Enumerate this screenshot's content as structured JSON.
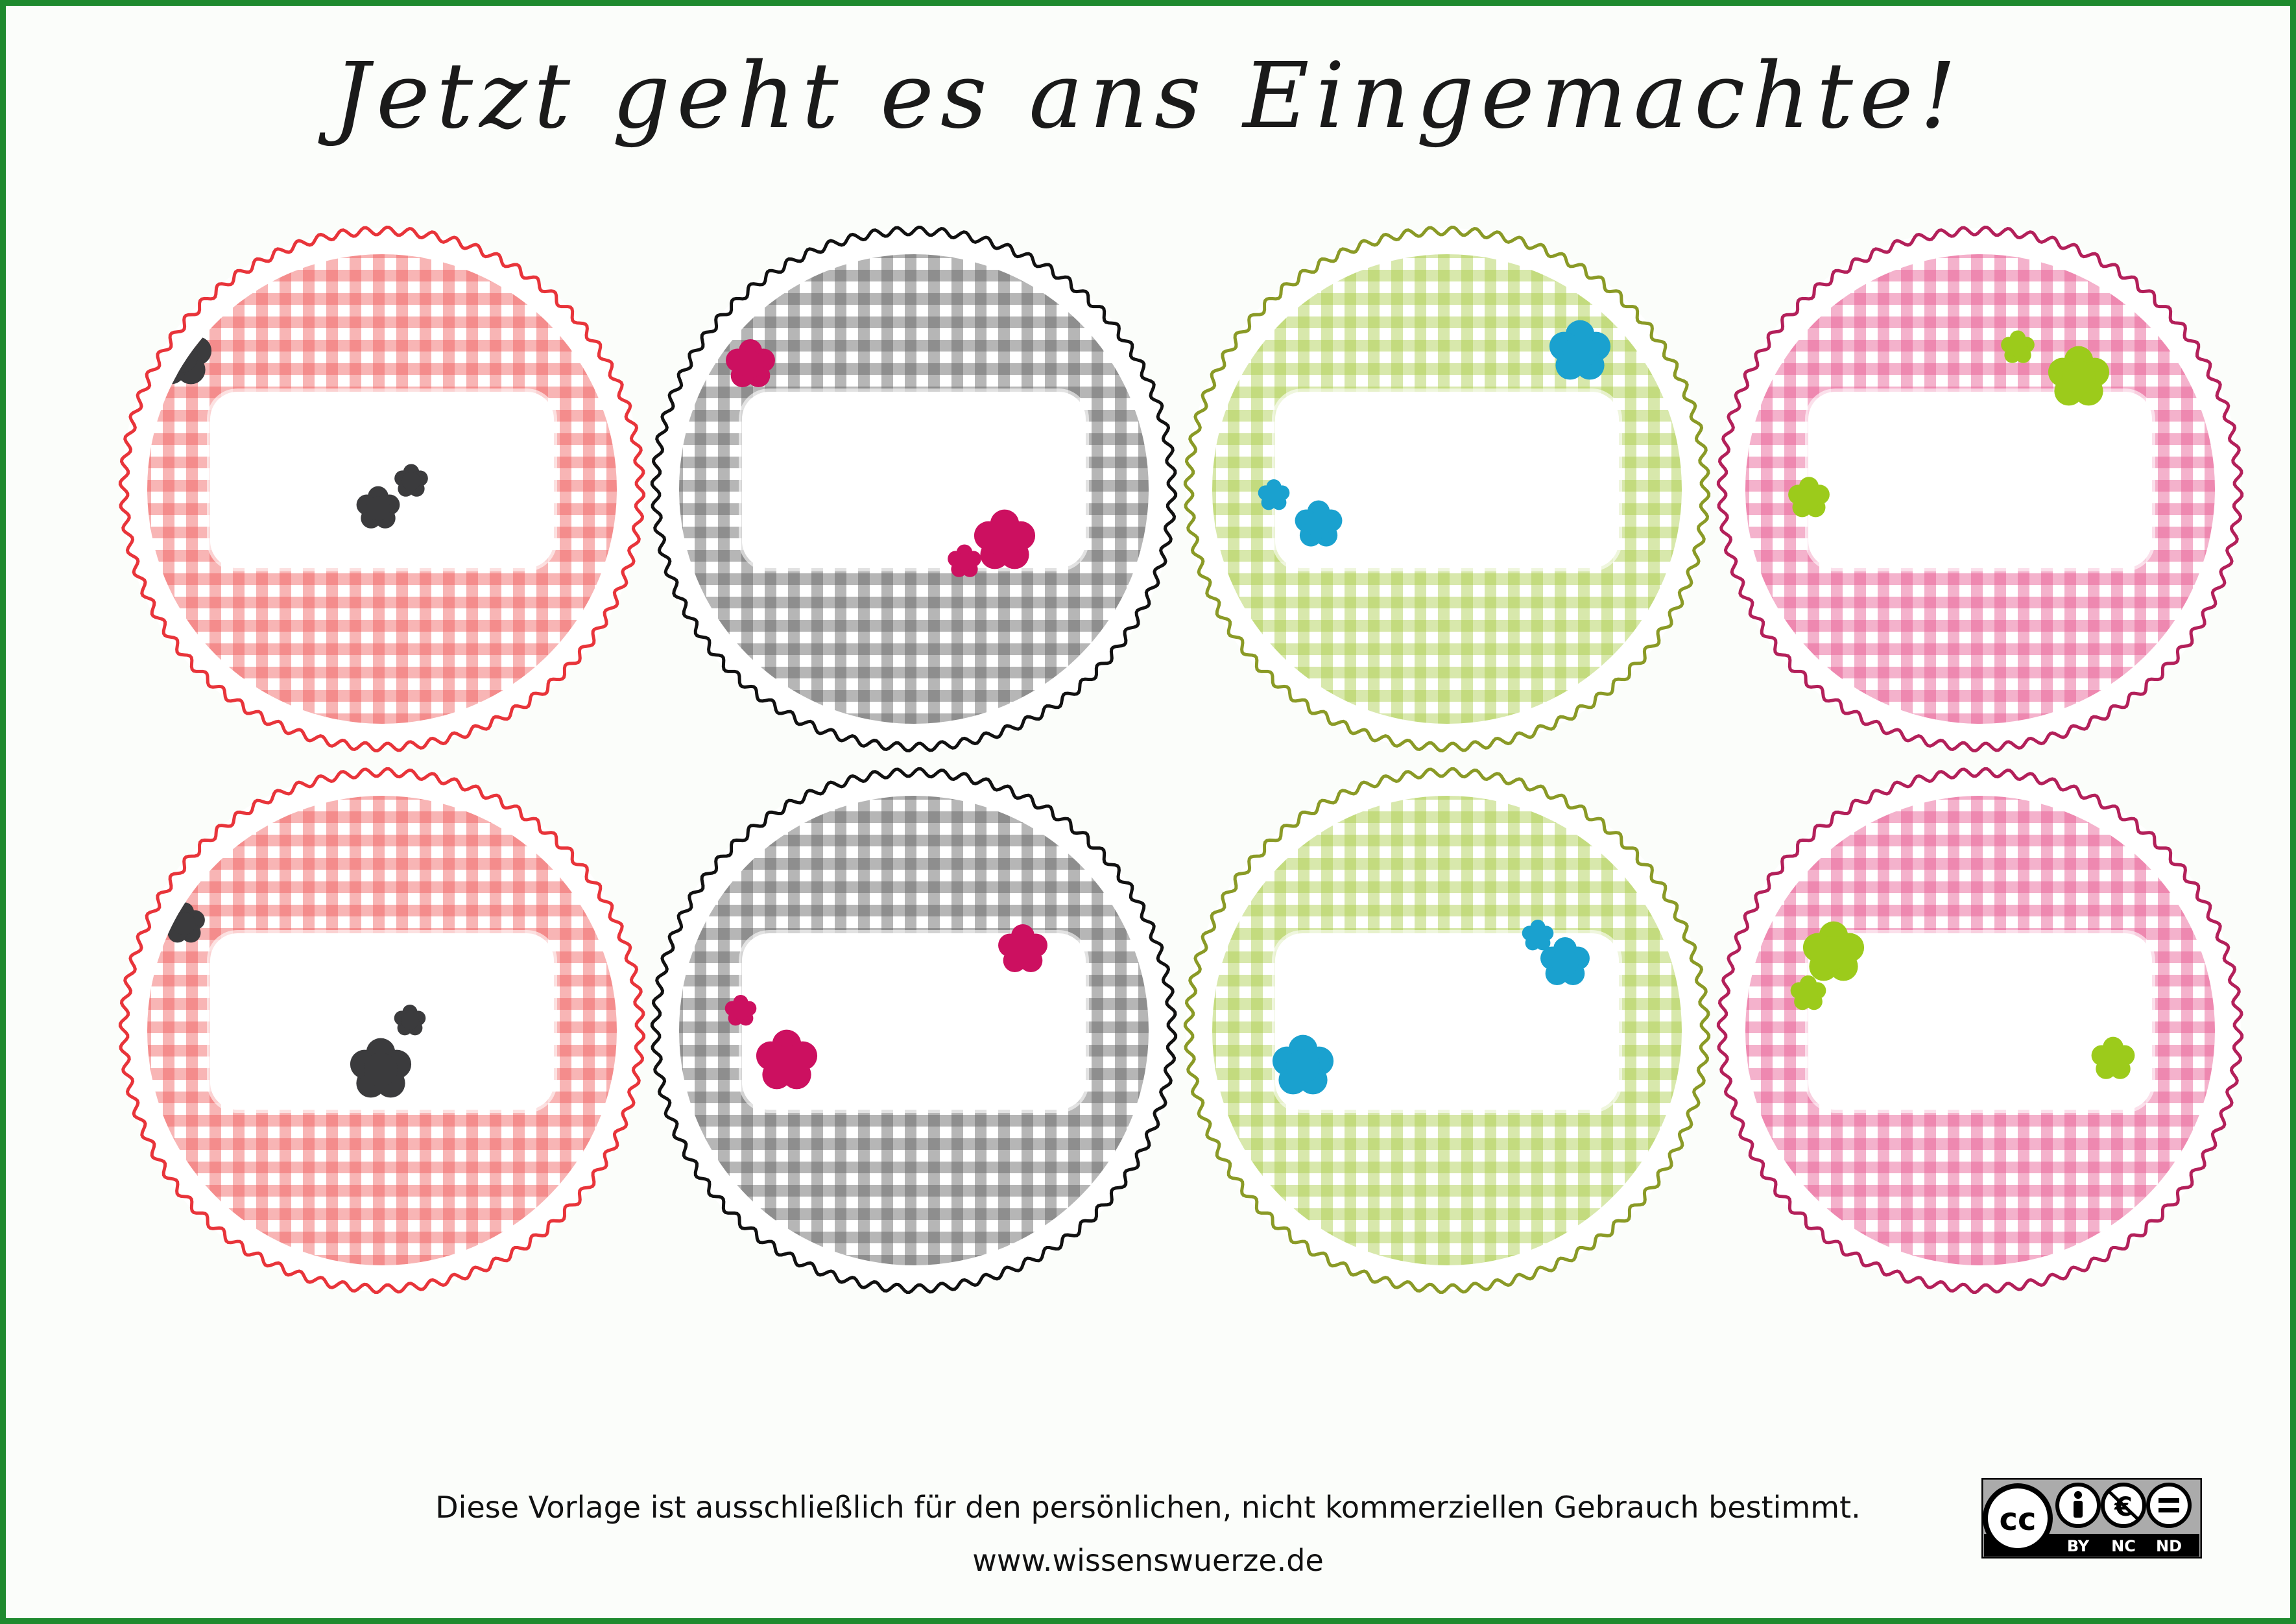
{
  "page": {
    "title": "Jetzt geht es ans Eingemachte!",
    "footer_note": "Diese Vorlage ist ausschließlich für den persönlichen, nicht kommerziellen Gebrauch bestimmt.",
    "footer_url": "www.wissenswuerze.de",
    "border_color": "#1e8a2e"
  },
  "license_badge": {
    "glyphs": [
      "cc-icon",
      "by-person-icon",
      "nc-euro-icon",
      "nd-equals-icon"
    ],
    "tags": [
      "BY",
      "NC",
      "ND"
    ]
  },
  "labels": [
    {
      "name": "label-red-1",
      "theme": "red",
      "line": "#e8343a",
      "check": "#ef5a5c",
      "flower": "#3b3b3d"
    },
    {
      "name": "label-black-1",
      "theme": "black",
      "line": "#111111",
      "check": "#5e5e5e",
      "flower": "#cc1060"
    },
    {
      "name": "label-green-1",
      "theme": "green",
      "line": "#8a9a26",
      "check": "#a9cc46",
      "flower": "#1aa1cf"
    },
    {
      "name": "label-pink-1",
      "theme": "pink",
      "line": "#b3205a",
      "check": "#e8548f",
      "flower": "#9ccb1b"
    },
    {
      "name": "label-red-2",
      "theme": "red",
      "line": "#e8343a",
      "check": "#ef5a5c",
      "flower": "#3b3b3d"
    },
    {
      "name": "label-black-2",
      "theme": "black",
      "line": "#111111",
      "check": "#5e5e5e",
      "flower": "#cc1060"
    },
    {
      "name": "label-green-2",
      "theme": "green",
      "line": "#8a9a26",
      "check": "#a9cc46",
      "flower": "#1aa1cf"
    },
    {
      "name": "label-pink-2",
      "theme": "pink",
      "line": "#b3205a",
      "check": "#e8548f",
      "flower": "#9ccb1b"
    }
  ]
}
